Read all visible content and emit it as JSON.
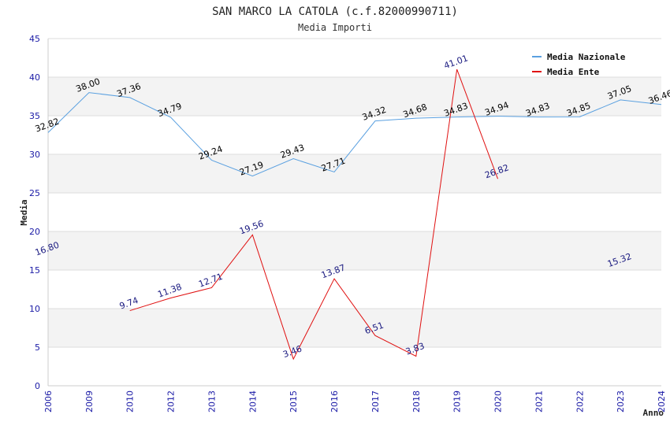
{
  "chart_data": {
    "type": "line",
    "title": "SAN MARCO LA CATOLA (c.f.82000990711)",
    "subtitle": "Media Importi",
    "xlabel": "Anno",
    "ylabel": "Media",
    "ylim": [
      0,
      45
    ],
    "yticks": [
      0,
      5,
      10,
      15,
      20,
      25,
      30,
      35,
      40,
      45
    ],
    "categories": [
      "2006",
      "2009",
      "2010",
      "2012",
      "2013",
      "2014",
      "2015",
      "2016",
      "2017",
      "2018",
      "2019",
      "2020",
      "2021",
      "2022",
      "2023",
      "2024"
    ],
    "series": [
      {
        "name": "Media Nazionale",
        "color": "#5aa0e0",
        "label_color": "#000000",
        "values": [
          32.82,
          38.0,
          37.36,
          34.79,
          29.24,
          27.19,
          29.43,
          27.71,
          34.32,
          34.68,
          34.83,
          34.94,
          34.83,
          34.85,
          37.05,
          36.46
        ],
        "labels": [
          "32.82",
          "38.00",
          "37.36",
          "34.79",
          "29.24",
          "27.19",
          "29.43",
          "27.71",
          "34.32",
          "34.68",
          "34.83",
          "34.94",
          "34.83",
          "34.85",
          "37.05",
          "36.46"
        ]
      },
      {
        "name": "Media Ente",
        "color": "#e01010",
        "label_color": "#1a1a80",
        "values": [
          16.8,
          null,
          9.74,
          11.38,
          12.71,
          19.56,
          3.46,
          13.87,
          6.51,
          3.83,
          41.01,
          26.82,
          null,
          null,
          15.32,
          null
        ],
        "labels": [
          "16.80",
          null,
          "9.74",
          "11.38",
          "12.71",
          "19.56",
          "3.46",
          "13.87",
          "6.51",
          "3.83",
          "41.01",
          "26.82",
          null,
          null,
          "15.32",
          null
        ]
      }
    ],
    "grid": true,
    "legend": "top-right"
  }
}
